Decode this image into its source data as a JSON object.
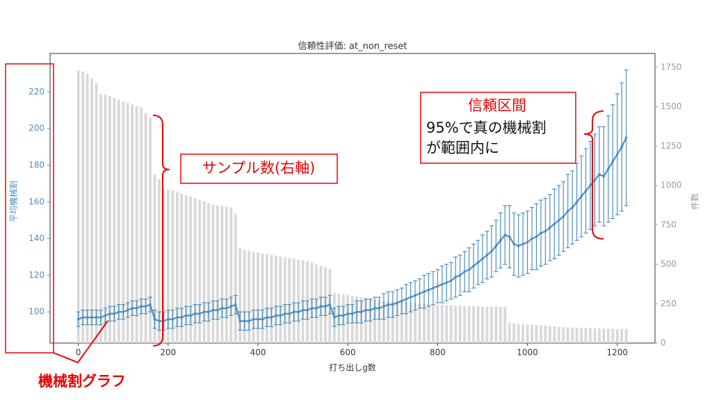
{
  "chart_data": {
    "type": "combo",
    "title": "信頼性評価: at_non_reset",
    "xlabel": "打ち出しg数",
    "ylabel": "平均機械割",
    "y2label": "件数",
    "xlim": [
      -63,
      1284
    ],
    "xticks": [
      0,
      200,
      400,
      600,
      800,
      1000,
      1200
    ],
    "ylim": [
      83,
      241
    ],
    "yticks": [
      100,
      120,
      140,
      160,
      180,
      200,
      220
    ],
    "y2lim": [
      0,
      1838
    ],
    "y2ticks": [
      0,
      250,
      500,
      750,
      1000,
      1250,
      1500,
      1750
    ],
    "x": [
      0,
      10,
      20,
      30,
      40,
      50,
      60,
      70,
      80,
      90,
      100,
      110,
      120,
      130,
      140,
      150,
      160,
      170,
      180,
      190,
      200,
      210,
      220,
      230,
      240,
      250,
      260,
      270,
      280,
      290,
      300,
      310,
      320,
      330,
      340,
      350,
      360,
      370,
      380,
      390,
      400,
      410,
      420,
      430,
      440,
      450,
      460,
      470,
      480,
      490,
      500,
      510,
      520,
      530,
      540,
      550,
      560,
      570,
      580,
      590,
      600,
      610,
      620,
      630,
      640,
      650,
      660,
      670,
      680,
      690,
      700,
      710,
      720,
      730,
      740,
      750,
      760,
      770,
      780,
      790,
      800,
      810,
      820,
      830,
      840,
      850,
      860,
      870,
      880,
      890,
      900,
      910,
      920,
      930,
      940,
      950,
      960,
      970,
      980,
      990,
      1000,
      1010,
      1020,
      1030,
      1040,
      1050,
      1060,
      1070,
      1080,
      1090,
      1100,
      1110,
      1120,
      1130,
      1140,
      1150,
      1160,
      1170,
      1180,
      1190,
      1200,
      1210,
      1220
    ],
    "series": [
      {
        "type": "bar",
        "axis": "y2",
        "color": "#d9d9d9",
        "values": [
          1730,
          1725,
          1710,
          1680,
          1650,
          1580,
          1575,
          1565,
          1555,
          1545,
          1535,
          1525,
          1515,
          1505,
          1495,
          1460,
          1430,
          1070,
          1040,
          980,
          975,
          970,
          960,
          950,
          940,
          930,
          920,
          910,
          900,
          890,
          880,
          875,
          870,
          865,
          860,
          820,
          600,
          590,
          585,
          580,
          575,
          570,
          565,
          560,
          555,
          550,
          545,
          540,
          535,
          530,
          525,
          520,
          510,
          500,
          490,
          480,
          470,
          320,
          315,
          310,
          305,
          300,
          295,
          290,
          285,
          280,
          275,
          270,
          268,
          266,
          264,
          262,
          260,
          258,
          256,
          254,
          252,
          250,
          248,
          246,
          244,
          242,
          240,
          240,
          238,
          238,
          236,
          236,
          234,
          234,
          232,
          232,
          230,
          230,
          228,
          228,
          130,
          125,
          122,
          120,
          118,
          116,
          114,
          112,
          110,
          108,
          106,
          104,
          102,
          100,
          99,
          98,
          97,
          96,
          95,
          94,
          93,
          92,
          91,
          91,
          90,
          90,
          90
        ]
      },
      {
        "type": "line",
        "color": "#4a8fc0",
        "values": [
          96,
          97,
          97,
          97,
          97,
          97,
          98,
          99,
          99,
          100,
          100,
          101,
          102,
          102,
          103,
          103,
          104,
          96,
          95,
          95,
          96,
          96,
          97,
          97,
          98,
          98,
          99,
          99,
          100,
          100,
          101,
          101,
          102,
          102,
          103,
          104,
          95,
          95,
          95,
          96,
          96,
          96,
          97,
          97,
          98,
          98,
          99,
          99,
          100,
          100,
          101,
          101,
          102,
          102,
          103,
          103,
          104,
          97,
          98,
          98,
          99,
          99,
          100,
          100,
          101,
          101,
          102,
          102,
          103,
          104,
          104,
          105,
          106,
          107,
          108,
          109,
          110,
          111,
          112,
          113,
          114,
          115,
          116,
          117,
          119,
          120,
          122,
          123,
          125,
          127,
          129,
          131,
          133,
          136,
          139,
          142,
          141,
          137,
          136,
          137,
          138,
          140,
          141,
          143,
          144,
          146,
          148,
          150,
          152,
          155,
          157,
          160,
          163,
          166,
          169,
          172,
          175,
          174,
          178,
          182,
          186,
          190,
          195
        ],
        "errors": [
          4,
          4,
          4,
          4,
          4,
          4,
          4,
          4,
          4,
          4,
          4,
          4,
          4,
          4,
          4,
          4,
          4,
          5,
          5,
          5,
          5,
          5,
          5,
          5,
          5,
          5,
          5,
          5,
          5,
          5,
          5,
          5,
          5,
          5,
          5,
          5,
          5,
          5,
          5,
          5,
          5,
          5,
          5,
          5,
          5,
          5,
          5,
          5,
          5,
          5,
          5,
          5,
          5,
          5,
          5,
          5,
          5,
          5,
          5,
          5,
          5,
          5,
          6,
          6,
          6,
          6,
          6,
          6,
          7,
          7,
          7,
          7,
          7,
          8,
          8,
          8,
          8,
          9,
          9,
          9,
          9,
          10,
          10,
          10,
          11,
          11,
          11,
          12,
          12,
          12,
          13,
          13,
          14,
          14,
          15,
          16,
          17,
          17,
          17,
          17,
          17,
          17,
          18,
          18,
          18,
          18,
          19,
          19,
          19,
          20,
          20,
          21,
          22,
          23,
          24,
          25,
          26,
          27,
          29,
          31,
          33,
          35,
          37
        ]
      }
    ],
    "annotations": [
      "サンプル数(右軸)",
      "信頼区間",
      "95%で真の機械割",
      "が範囲内に",
      "機械割グラフ"
    ]
  }
}
